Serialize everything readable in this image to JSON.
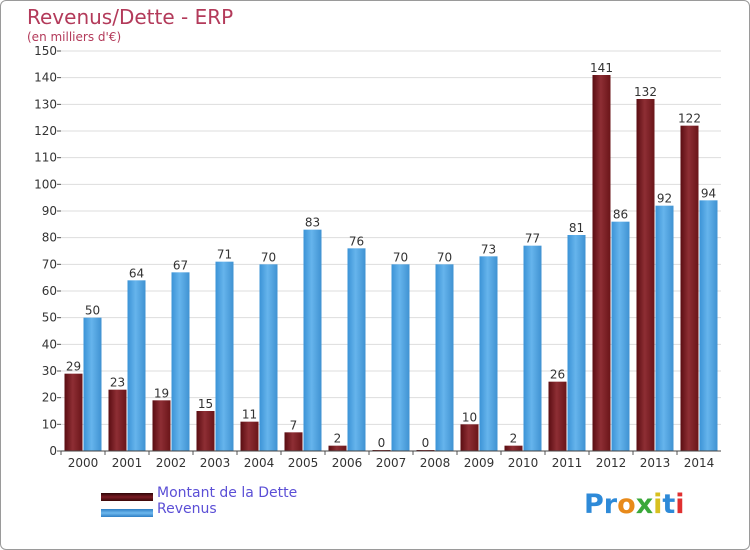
{
  "title": "Revenus/Dette - ERP",
  "subtitle": "(en milliers d'€)",
  "logo": "Proxiti",
  "colors": {
    "dette": "#7a1c24",
    "revenus": "#4fa6e4",
    "title": "#b33a5a",
    "legend_text": "#5b4fd6"
  },
  "chart_data": {
    "type": "bar",
    "categories": [
      "2000",
      "2001",
      "2002",
      "2003",
      "2004",
      "2005",
      "2006",
      "2007",
      "2008",
      "2009",
      "2010",
      "2011",
      "2012",
      "2013",
      "2014"
    ],
    "series": [
      {
        "name": "Montant de la Dette",
        "values": [
          29,
          23,
          19,
          15,
          11,
          7,
          2,
          0,
          0,
          10,
          2,
          26,
          141,
          132,
          122
        ]
      },
      {
        "name": "Revenus",
        "values": [
          50,
          64,
          67,
          71,
          70,
          83,
          76,
          70,
          70,
          73,
          77,
          81,
          86,
          92,
          94
        ]
      }
    ],
    "ylim": [
      0,
      150
    ],
    "yticks": [
      0,
      10,
      20,
      30,
      40,
      50,
      60,
      70,
      80,
      90,
      100,
      110,
      120,
      130,
      140,
      150
    ],
    "grid": true,
    "legend_position": "bottom-left"
  }
}
